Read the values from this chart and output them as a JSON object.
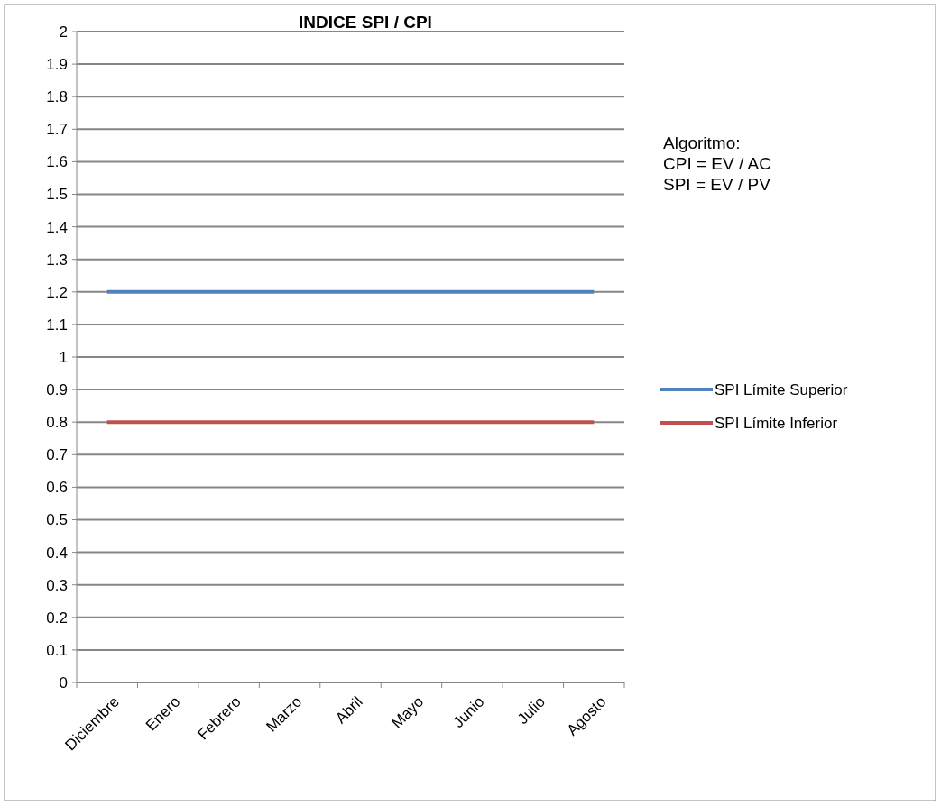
{
  "chart_data": {
    "type": "line",
    "title": "INDICE SPI / CPI",
    "categories": [
      "Diciembre",
      "Enero",
      "Febrero",
      "Marzo",
      "Abril",
      "Mayo",
      "Junio",
      "Julio",
      "Agosto"
    ],
    "series": [
      {
        "name": "SPI Límite Superior",
        "color": "#4f81bd",
        "values": [
          1.2,
          1.2,
          1.2,
          1.2,
          1.2,
          1.2,
          1.2,
          1.2,
          1.2
        ]
      },
      {
        "name": "SPI Límite Inferior",
        "color": "#c0504d",
        "values": [
          0.8,
          0.8,
          0.8,
          0.8,
          0.8,
          0.8,
          0.8,
          0.8,
          0.8
        ]
      }
    ],
    "ylim": [
      0,
      2
    ],
    "yticks": [
      0,
      0.1,
      0.2,
      0.3,
      0.4,
      0.5,
      0.6,
      0.7,
      0.8,
      0.9,
      1,
      1.1,
      1.2,
      1.3,
      1.4,
      1.5,
      1.6,
      1.7,
      1.8,
      1.9,
      2
    ],
    "grid": "y",
    "legend": "right",
    "marker": "none",
    "line_style": "solid",
    "annotations": [
      "Algoritmo:\nCPI = EV / AC\nSPI = EV / PV"
    ]
  }
}
